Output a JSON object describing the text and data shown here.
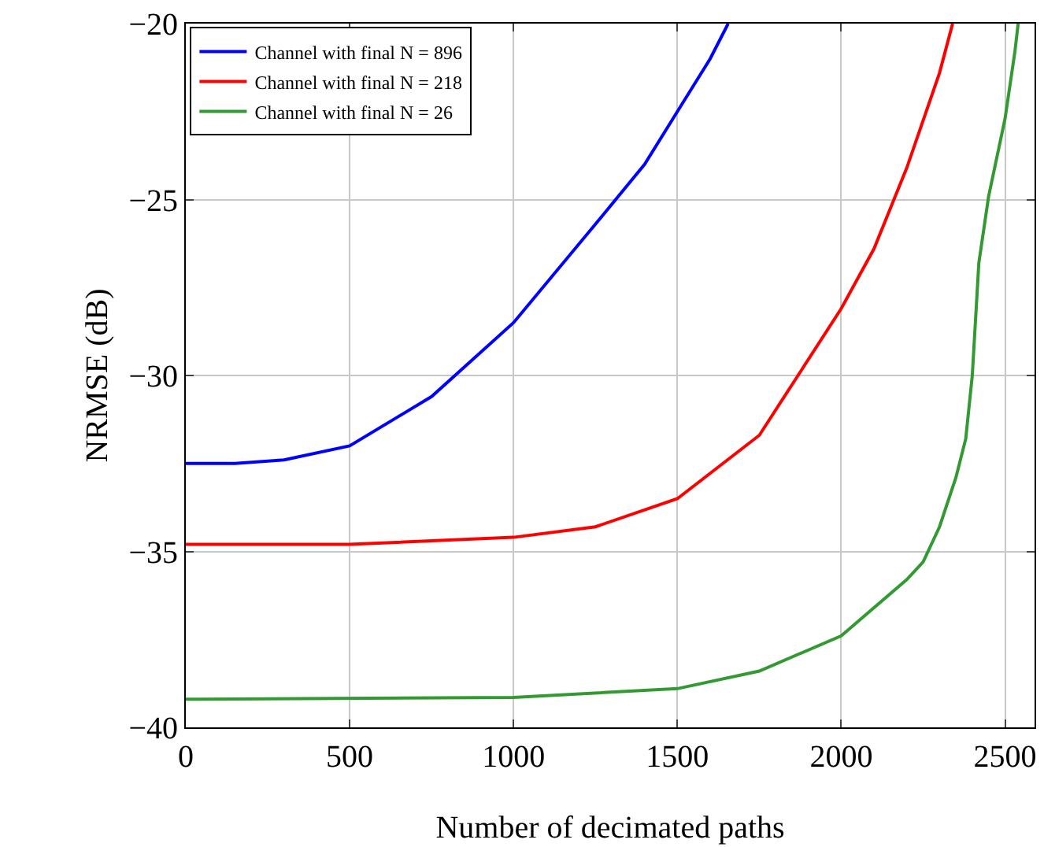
{
  "chart_data": {
    "type": "line",
    "xlabel": "Number of decimated paths",
    "ylabel": "NRMSE (dB)",
    "xlim": [
      0,
      2590
    ],
    "ylim": [
      -40,
      -20
    ],
    "xticks": [
      0,
      500,
      1000,
      1500,
      2000,
      2500
    ],
    "yticks": [
      -40,
      -35,
      -30,
      -25,
      -20
    ],
    "grid": true,
    "legend": "top left",
    "marker": "none",
    "line_style": "solid",
    "series": [
      {
        "name": "Channel with final N = 896",
        "color": "#0000ff",
        "x": [
          0,
          150,
          300,
          500,
          750,
          1000,
          1250,
          1400,
          1500,
          1600,
          1655
        ],
        "values": [
          -32.5,
          -32.5,
          -32.4,
          -32.0,
          -30.6,
          -28.5,
          -25.7,
          -24.0,
          -22.5,
          -21.0,
          -20.0
        ]
      },
      {
        "name": "Channel with final N = 218",
        "color": "#ff0000",
        "x": [
          0,
          500,
          1000,
          1250,
          1500,
          1750,
          2000,
          2100,
          2200,
          2300,
          2340
        ],
        "values": [
          -34.8,
          -34.8,
          -34.6,
          -34.3,
          -33.5,
          -31.7,
          -28.1,
          -26.4,
          -24.1,
          -21.4,
          -20.0
        ]
      },
      {
        "name": "Channel with final N = 26",
        "color": "#339933",
        "x": [
          0,
          1000,
          1500,
          1750,
          2000,
          2200,
          2250,
          2300,
          2350,
          2380,
          2400,
          2420,
          2450,
          2500,
          2530,
          2540
        ],
        "values": [
          -39.2,
          -39.15,
          -38.9,
          -38.4,
          -37.4,
          -35.8,
          -35.3,
          -34.3,
          -32.9,
          -31.8,
          -30.0,
          -26.8,
          -24.9,
          -22.7,
          -20.8,
          -20.0
        ]
      }
    ]
  }
}
